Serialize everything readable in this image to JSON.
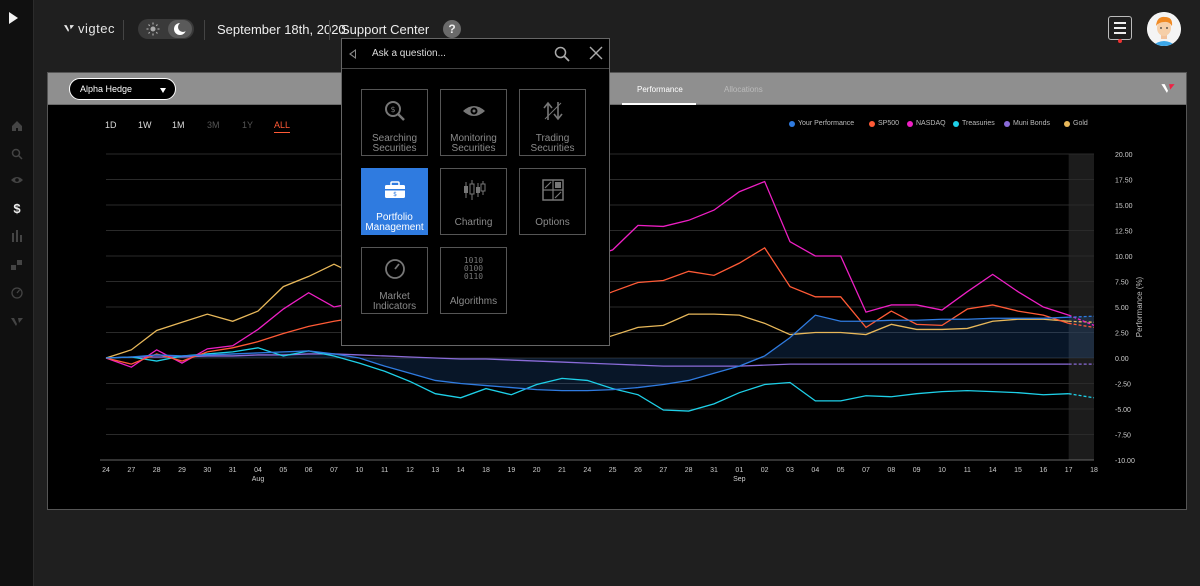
{
  "topbar": {
    "logo": "vigtec",
    "date": "September 18th, 2020",
    "support": "Support Center",
    "help": "?"
  },
  "rail_icons": [
    "play-icon",
    "home-icon",
    "search-icon",
    "eye-icon",
    "dollar-icon",
    "bars-icon",
    "grid-icon",
    "gauge-icon",
    "v-logo-icon"
  ],
  "panel": {
    "portfolio": "Alpha Hedge",
    "tabs": [
      {
        "label": "Performance",
        "active": true
      },
      {
        "label": "Allocations",
        "active": false
      }
    ],
    "ranges": [
      {
        "label": "1D",
        "state": "on"
      },
      {
        "label": "1W",
        "state": "on"
      },
      {
        "label": "1M",
        "state": "on"
      },
      {
        "label": "3M",
        "state": "dim"
      },
      {
        "label": "1Y",
        "state": "dim"
      },
      {
        "label": "ALL",
        "state": "active"
      }
    ],
    "legend": [
      {
        "label": "Your Performance",
        "color": "#2f7be0"
      },
      {
        "label": "SP500",
        "color": "#ff5a36"
      },
      {
        "label": "NASDAQ",
        "color": "#ee1fc4"
      },
      {
        "label": "Treasuries",
        "color": "#1ed0e8"
      },
      {
        "label": "Muni Bonds",
        "color": "#8a6bd8"
      },
      {
        "label": "Gold",
        "color": "#e8b85a"
      }
    ]
  },
  "popup": {
    "placeholder": "Ask a question...",
    "tiles": [
      {
        "label": "Searching\nSecurities",
        "icon": "search-dollar-icon",
        "active": false
      },
      {
        "label": "Monitoring\nSecurities",
        "icon": "eye-icon",
        "active": false
      },
      {
        "label": "Trading\nSecurities",
        "icon": "trade-arrows-icon",
        "active": false
      },
      {
        "label": "Portfolio\nManagement",
        "icon": "briefcase-icon",
        "active": true
      },
      {
        "label": "Charting",
        "icon": "candlestick-icon",
        "active": false
      },
      {
        "label": "Options",
        "icon": "options-grid-icon",
        "active": false
      },
      {
        "label": "Market\nIndicators",
        "icon": "gauge-icon",
        "active": false
      },
      {
        "label": "Algorithms",
        "icon": "binary-icon",
        "active": false
      }
    ],
    "algorithms_glyph": "1010\n0100\n0110"
  },
  "chart_data": {
    "type": "line",
    "ylabel": "Performance (%)",
    "ylim": [
      -10,
      20
    ],
    "yticks": [
      "20.00",
      "17.50",
      "15.00",
      "12.50",
      "10.00",
      "7.50",
      "5.00",
      "2.50",
      "0.00",
      "-2.50",
      "-5.00",
      "-7.50",
      "-10.00"
    ],
    "x": [
      "24",
      "27",
      "28",
      "29",
      "30",
      "31",
      "04",
      "05",
      "06",
      "07",
      "10",
      "11",
      "12",
      "13",
      "14",
      "18",
      "19",
      "20",
      "21",
      "24",
      "25",
      "26",
      "27",
      "28",
      "31",
      "01",
      "02",
      "03",
      "04",
      "05",
      "07",
      "08",
      "09",
      "10",
      "11",
      "14",
      "15",
      "16",
      "17",
      "18"
    ],
    "month_labels": [
      {
        "at": "04",
        "label": "Aug"
      },
      {
        "at": "01",
        "label": "Sep"
      }
    ],
    "series": [
      {
        "name": "Your Performance",
        "values": [
          0,
          0.1,
          0.3,
          0.2,
          0.3,
          0.4,
          0.5,
          0.6,
          0.7,
          0.4,
          0.0,
          -0.8,
          -1.5,
          -2.2,
          -2.5,
          -2.7,
          -2.9,
          -3.1,
          -3.2,
          -3.2,
          -3.1,
          -2.9,
          -2.6,
          -2.2,
          -1.5,
          -0.8,
          0.2,
          2.0,
          4.2,
          3.6,
          3.6,
          3.7,
          3.7,
          3.8,
          3.8,
          3.9,
          3.9,
          3.9,
          4.0,
          4.1
        ]
      },
      {
        "name": "SP500",
        "values": [
          0,
          -0.6,
          0.4,
          -0.3,
          0.6,
          1.0,
          1.6,
          2.4,
          3.1,
          3.6,
          4.0,
          4.4,
          4.9,
          5.1,
          5.3,
          5.3,
          5.3,
          5.3,
          5.4,
          5.5,
          6.5,
          7.4,
          7.6,
          8.5,
          8.1,
          9.3,
          10.8,
          7.0,
          6.0,
          6.0,
          3.0,
          4.6,
          3.3,
          3.2,
          4.8,
          5.2,
          4.6,
          4.2,
          3.4,
          3.0
        ]
      },
      {
        "name": "NASDAQ",
        "values": [
          0,
          -0.9,
          0.8,
          -0.5,
          0.9,
          1.2,
          2.8,
          4.8,
          6.4,
          5.0,
          5.5,
          6.5,
          7.5,
          8.0,
          8.0,
          8.5,
          9.0,
          9.2,
          9.5,
          9.8,
          10.6,
          13.0,
          12.9,
          13.5,
          14.5,
          16.3,
          17.3,
          11.4,
          10.0,
          10.0,
          4.5,
          5.2,
          5.2,
          4.7,
          6.5,
          8.2,
          6.5,
          5.0,
          4.2,
          3.2
        ]
      },
      {
        "name": "Treasuries",
        "values": [
          0,
          0.1,
          -0.3,
          0.2,
          0.4,
          0.6,
          1.0,
          0.2,
          0.7,
          0.2,
          -0.5,
          -1.3,
          -2.3,
          -3.5,
          -3.9,
          -3.0,
          -3.6,
          -2.6,
          -2.0,
          -2.2,
          -3.0,
          -3.6,
          -5.1,
          -5.2,
          -4.5,
          -3.4,
          -2.6,
          -2.4,
          -4.2,
          -4.2,
          -3.7,
          -3.8,
          -3.5,
          -3.3,
          -3.2,
          -3.3,
          -3.4,
          -3.6,
          -3.5,
          -3.9
        ]
      },
      {
        "name": "Muni Bonds",
        "values": [
          0,
          0.1,
          0.1,
          0.1,
          0.2,
          0.2,
          0.3,
          0.3,
          0.4,
          0.4,
          0.3,
          0.2,
          0.1,
          0.0,
          -0.1,
          -0.1,
          -0.2,
          -0.3,
          -0.4,
          -0.5,
          -0.6,
          -0.7,
          -0.8,
          -0.8,
          -0.8,
          -0.8,
          -0.7,
          -0.6,
          -0.6,
          -0.6,
          -0.6,
          -0.6,
          -0.6,
          -0.6,
          -0.6,
          -0.6,
          -0.6,
          -0.6,
          -0.6,
          -0.6
        ]
      },
      {
        "name": "Gold",
        "values": [
          0,
          0.8,
          2.7,
          3.5,
          4.3,
          3.6,
          4.6,
          7.0,
          8.0,
          9.2,
          8.0,
          6.5,
          5.2,
          4.0,
          3.8,
          3.0,
          2.5,
          2.0,
          1.7,
          1.4,
          2.2,
          3.0,
          3.2,
          4.3,
          4.3,
          4.2,
          3.4,
          2.3,
          2.5,
          2.5,
          2.3,
          3.3,
          2.8,
          2.8,
          2.9,
          3.6,
          3.8,
          3.8,
          3.6,
          3.5
        ]
      }
    ]
  }
}
